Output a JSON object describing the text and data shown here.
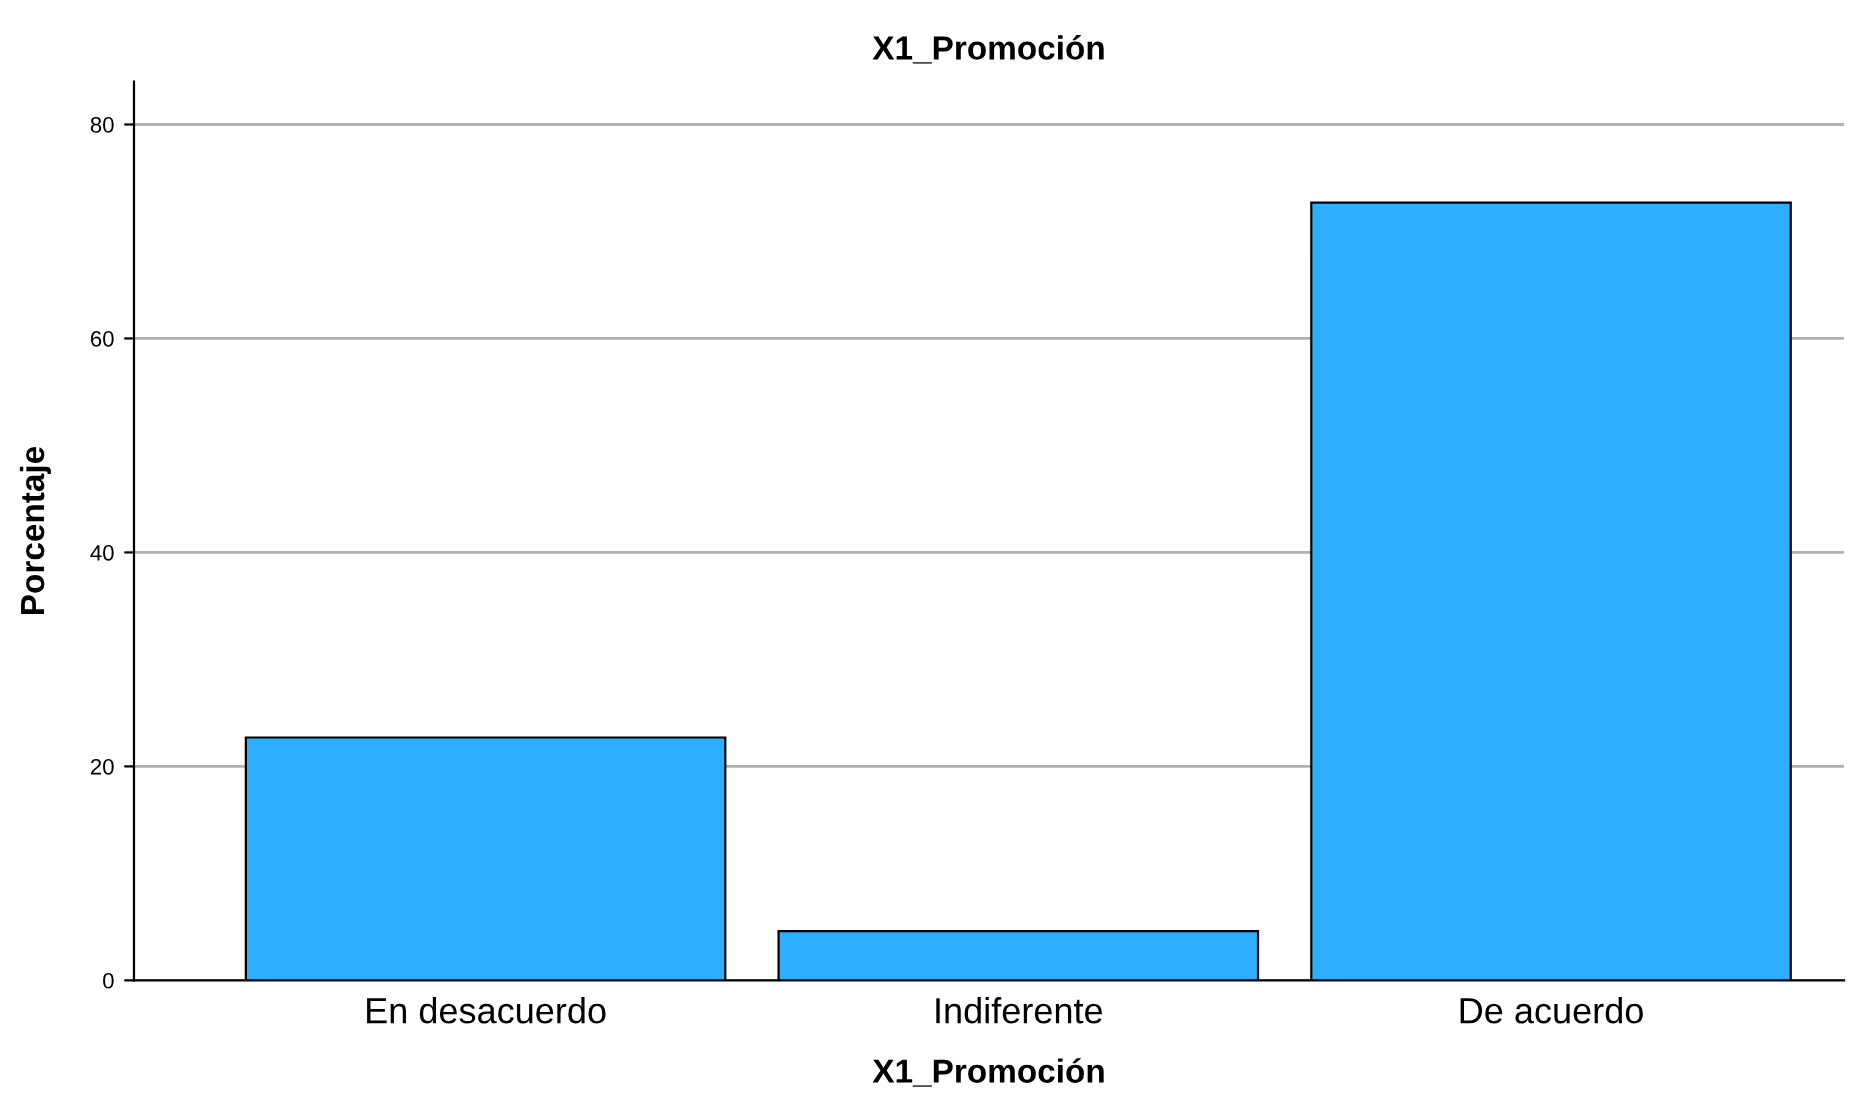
{
  "chart_data": {
    "type": "bar",
    "title": "X1_Promoción",
    "xlabel": "X1_Promoción",
    "ylabel": "Porcentaje",
    "categories": [
      "En desacuerdo",
      "Indiferente",
      "De acuerdo"
    ],
    "values": [
      22.7,
      4.6,
      72.7
    ],
    "color": "#2eaeff",
    "ylim": [
      0,
      84
    ],
    "yticks": [
      0,
      20,
      40,
      60,
      80
    ],
    "grid": "y"
  }
}
